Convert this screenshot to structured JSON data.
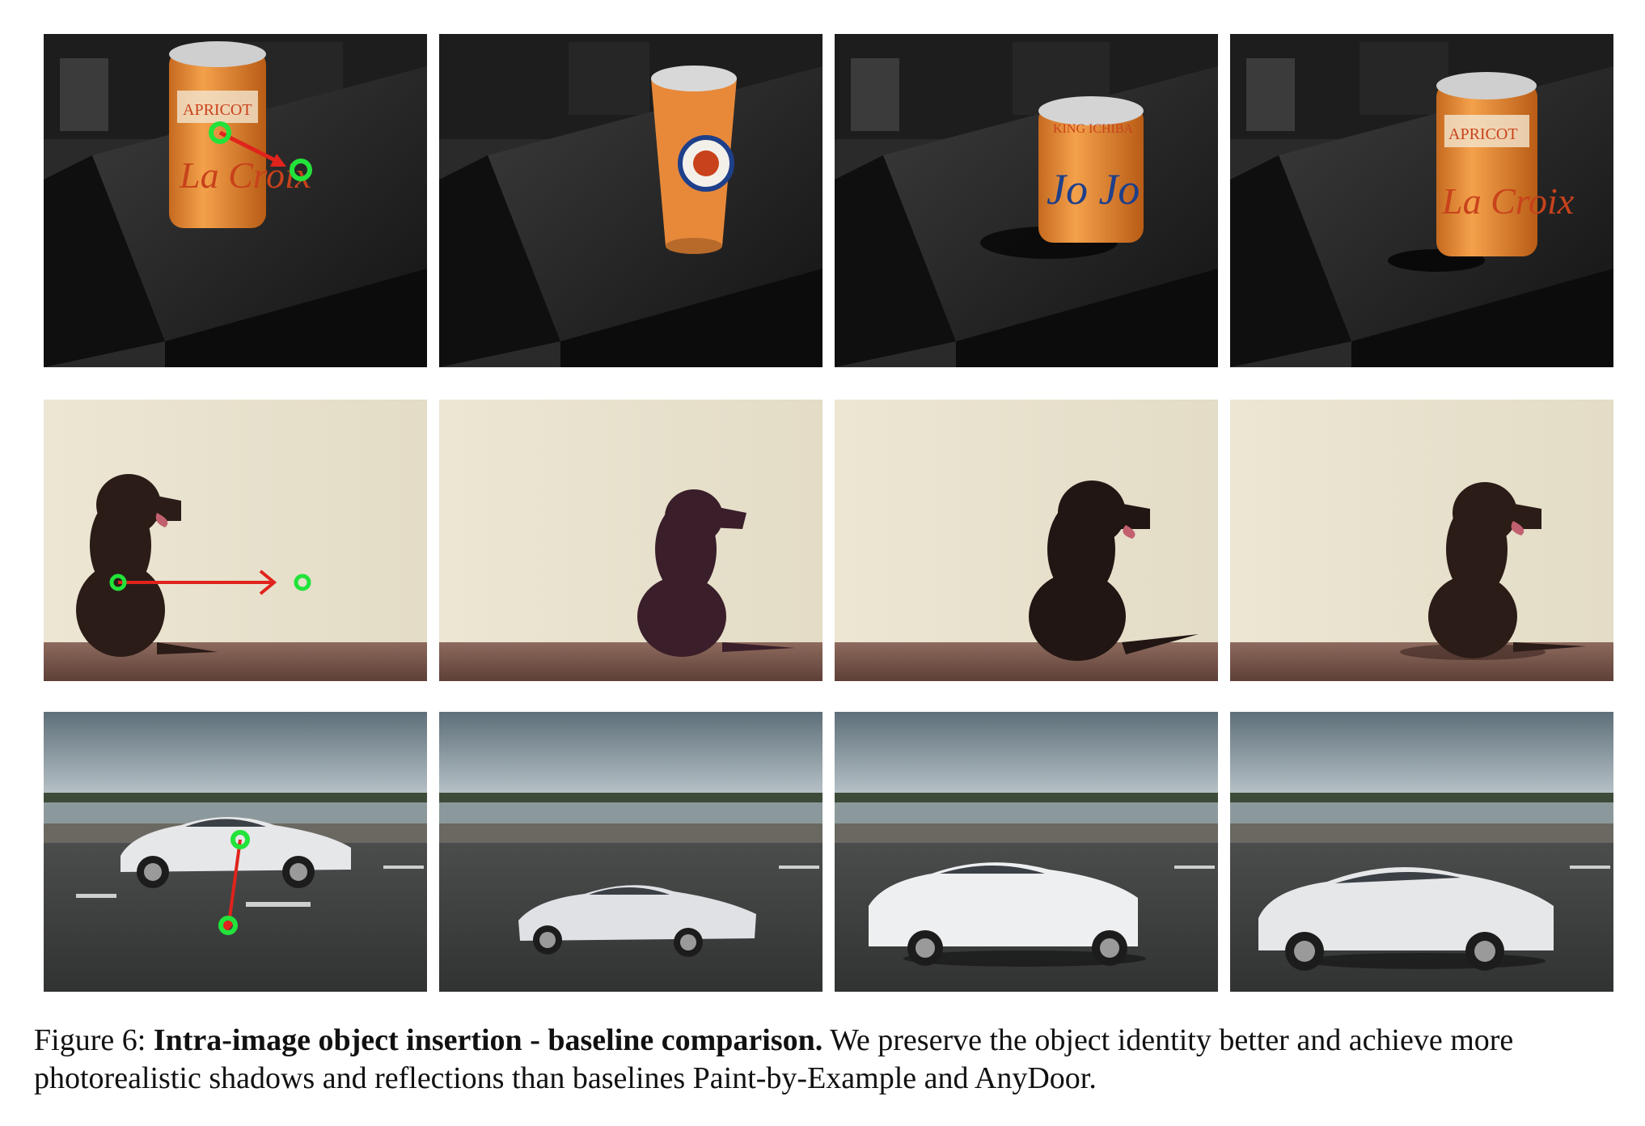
{
  "figure": {
    "caption_label": "Figure 6:",
    "caption_bold": "Intra-image object insertion - baseline comparison.",
    "caption_text": "We preserve the object identity better and achieve more photorealistic shadows and reflections than baselines Paint-by-Example and AnyDoor."
  },
  "rows": [
    {
      "subject": "can",
      "scene": "desk"
    },
    {
      "subject": "dog",
      "scene": "wall"
    },
    {
      "subject": "car",
      "scene": "road"
    }
  ],
  "can_labels": {
    "lacroix_small": "APRICOT",
    "lacroix_script": "La Croix",
    "anydoor_small": "KING ICHIBA",
    "anydoor_script": "Jo Jo"
  },
  "colors": {
    "drag_arrow": "#e0231c",
    "drag_handle": "#22e33a",
    "can_orange": "#e98a2d",
    "dog_brown": "#2b1c18",
    "car_white": "#e6e7e9"
  }
}
